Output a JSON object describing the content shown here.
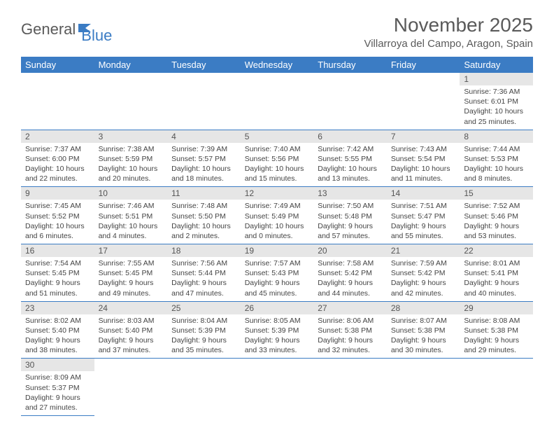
{
  "logo": {
    "part1": "General",
    "part2": "Blue"
  },
  "title": "November 2025",
  "location": "Villarroya del Campo, Aragon, Spain",
  "colors": {
    "header_bg": "#3b7cc4",
    "header_text": "#ffffff",
    "daynum_bg": "#e6e6e6",
    "cell_border": "#3b7cc4",
    "body_text": "#444444",
    "logo_gray": "#5a5a5a",
    "logo_blue": "#3b7cc4"
  },
  "weekdays": [
    "Sunday",
    "Monday",
    "Tuesday",
    "Wednesday",
    "Thursday",
    "Friday",
    "Saturday"
  ],
  "weeks": [
    [
      null,
      null,
      null,
      null,
      null,
      null,
      {
        "n": "1",
        "sr": "Sunrise: 7:36 AM",
        "ss": "Sunset: 6:01 PM",
        "d1": "Daylight: 10 hours",
        "d2": "and 25 minutes."
      }
    ],
    [
      {
        "n": "2",
        "sr": "Sunrise: 7:37 AM",
        "ss": "Sunset: 6:00 PM",
        "d1": "Daylight: 10 hours",
        "d2": "and 22 minutes."
      },
      {
        "n": "3",
        "sr": "Sunrise: 7:38 AM",
        "ss": "Sunset: 5:59 PM",
        "d1": "Daylight: 10 hours",
        "d2": "and 20 minutes."
      },
      {
        "n": "4",
        "sr": "Sunrise: 7:39 AM",
        "ss": "Sunset: 5:57 PM",
        "d1": "Daylight: 10 hours",
        "d2": "and 18 minutes."
      },
      {
        "n": "5",
        "sr": "Sunrise: 7:40 AM",
        "ss": "Sunset: 5:56 PM",
        "d1": "Daylight: 10 hours",
        "d2": "and 15 minutes."
      },
      {
        "n": "6",
        "sr": "Sunrise: 7:42 AM",
        "ss": "Sunset: 5:55 PM",
        "d1": "Daylight: 10 hours",
        "d2": "and 13 minutes."
      },
      {
        "n": "7",
        "sr": "Sunrise: 7:43 AM",
        "ss": "Sunset: 5:54 PM",
        "d1": "Daylight: 10 hours",
        "d2": "and 11 minutes."
      },
      {
        "n": "8",
        "sr": "Sunrise: 7:44 AM",
        "ss": "Sunset: 5:53 PM",
        "d1": "Daylight: 10 hours",
        "d2": "and 8 minutes."
      }
    ],
    [
      {
        "n": "9",
        "sr": "Sunrise: 7:45 AM",
        "ss": "Sunset: 5:52 PM",
        "d1": "Daylight: 10 hours",
        "d2": "and 6 minutes."
      },
      {
        "n": "10",
        "sr": "Sunrise: 7:46 AM",
        "ss": "Sunset: 5:51 PM",
        "d1": "Daylight: 10 hours",
        "d2": "and 4 minutes."
      },
      {
        "n": "11",
        "sr": "Sunrise: 7:48 AM",
        "ss": "Sunset: 5:50 PM",
        "d1": "Daylight: 10 hours",
        "d2": "and 2 minutes."
      },
      {
        "n": "12",
        "sr": "Sunrise: 7:49 AM",
        "ss": "Sunset: 5:49 PM",
        "d1": "Daylight: 10 hours",
        "d2": "and 0 minutes."
      },
      {
        "n": "13",
        "sr": "Sunrise: 7:50 AM",
        "ss": "Sunset: 5:48 PM",
        "d1": "Daylight: 9 hours",
        "d2": "and 57 minutes."
      },
      {
        "n": "14",
        "sr": "Sunrise: 7:51 AM",
        "ss": "Sunset: 5:47 PM",
        "d1": "Daylight: 9 hours",
        "d2": "and 55 minutes."
      },
      {
        "n": "15",
        "sr": "Sunrise: 7:52 AM",
        "ss": "Sunset: 5:46 PM",
        "d1": "Daylight: 9 hours",
        "d2": "and 53 minutes."
      }
    ],
    [
      {
        "n": "16",
        "sr": "Sunrise: 7:54 AM",
        "ss": "Sunset: 5:45 PM",
        "d1": "Daylight: 9 hours",
        "d2": "and 51 minutes."
      },
      {
        "n": "17",
        "sr": "Sunrise: 7:55 AM",
        "ss": "Sunset: 5:45 PM",
        "d1": "Daylight: 9 hours",
        "d2": "and 49 minutes."
      },
      {
        "n": "18",
        "sr": "Sunrise: 7:56 AM",
        "ss": "Sunset: 5:44 PM",
        "d1": "Daylight: 9 hours",
        "d2": "and 47 minutes."
      },
      {
        "n": "19",
        "sr": "Sunrise: 7:57 AM",
        "ss": "Sunset: 5:43 PM",
        "d1": "Daylight: 9 hours",
        "d2": "and 45 minutes."
      },
      {
        "n": "20",
        "sr": "Sunrise: 7:58 AM",
        "ss": "Sunset: 5:42 PM",
        "d1": "Daylight: 9 hours",
        "d2": "and 44 minutes."
      },
      {
        "n": "21",
        "sr": "Sunrise: 7:59 AM",
        "ss": "Sunset: 5:42 PM",
        "d1": "Daylight: 9 hours",
        "d2": "and 42 minutes."
      },
      {
        "n": "22",
        "sr": "Sunrise: 8:01 AM",
        "ss": "Sunset: 5:41 PM",
        "d1": "Daylight: 9 hours",
        "d2": "and 40 minutes."
      }
    ],
    [
      {
        "n": "23",
        "sr": "Sunrise: 8:02 AM",
        "ss": "Sunset: 5:40 PM",
        "d1": "Daylight: 9 hours",
        "d2": "and 38 minutes."
      },
      {
        "n": "24",
        "sr": "Sunrise: 8:03 AM",
        "ss": "Sunset: 5:40 PM",
        "d1": "Daylight: 9 hours",
        "d2": "and 37 minutes."
      },
      {
        "n": "25",
        "sr": "Sunrise: 8:04 AM",
        "ss": "Sunset: 5:39 PM",
        "d1": "Daylight: 9 hours",
        "d2": "and 35 minutes."
      },
      {
        "n": "26",
        "sr": "Sunrise: 8:05 AM",
        "ss": "Sunset: 5:39 PM",
        "d1": "Daylight: 9 hours",
        "d2": "and 33 minutes."
      },
      {
        "n": "27",
        "sr": "Sunrise: 8:06 AM",
        "ss": "Sunset: 5:38 PM",
        "d1": "Daylight: 9 hours",
        "d2": "and 32 minutes."
      },
      {
        "n": "28",
        "sr": "Sunrise: 8:07 AM",
        "ss": "Sunset: 5:38 PM",
        "d1": "Daylight: 9 hours",
        "d2": "and 30 minutes."
      },
      {
        "n": "29",
        "sr": "Sunrise: 8:08 AM",
        "ss": "Sunset: 5:38 PM",
        "d1": "Daylight: 9 hours",
        "d2": "and 29 minutes."
      }
    ],
    [
      {
        "n": "30",
        "sr": "Sunrise: 8:09 AM",
        "ss": "Sunset: 5:37 PM",
        "d1": "Daylight: 9 hours",
        "d2": "and 27 minutes."
      },
      null,
      null,
      null,
      null,
      null,
      null
    ]
  ]
}
